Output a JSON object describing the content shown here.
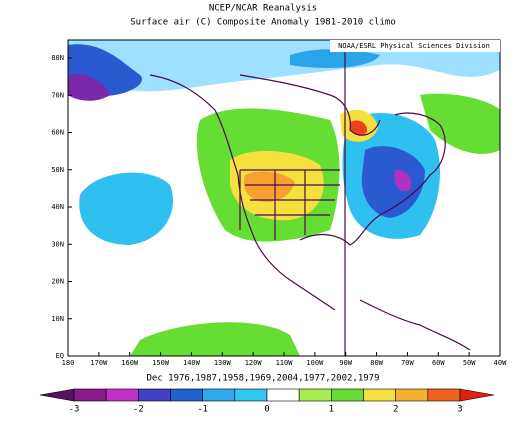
{
  "header": {
    "title": "NCEP/NCAR Reanalysis",
    "subtitle": "Surface air (C) Composite Anomaly 1981-2010 climo",
    "credit": "NOAA/ESRL Physical Sciences Division"
  },
  "map": {
    "lat_labels": [
      "80N",
      "70N",
      "60N",
      "50N",
      "40N",
      "30N",
      "20N",
      "10N",
      "EQ"
    ],
    "lon_labels": [
      "180",
      "170W",
      "160W",
      "150W",
      "140W",
      "130W",
      "120W",
      "110W",
      "100W",
      "90W",
      "80W",
      "70W",
      "60W",
      "50W",
      "40W"
    ]
  },
  "footer": {
    "years": "Dec 1976,1987,1958,1969,2004,1977,2002,1979"
  },
  "colorbar": {
    "ticks": [
      -3,
      -2,
      -1,
      0,
      1,
      2,
      3
    ]
  }
}
